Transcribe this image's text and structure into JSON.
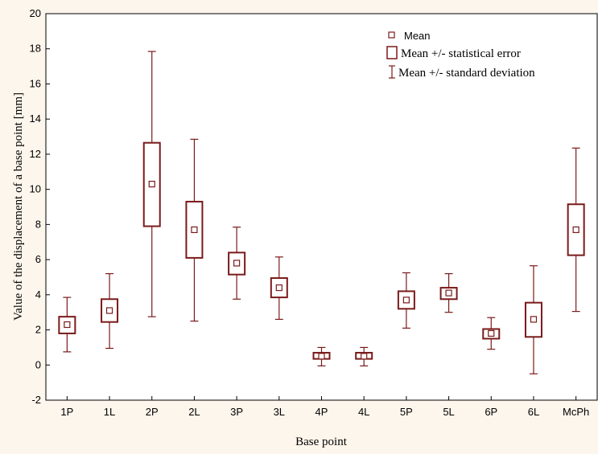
{
  "chart_data": {
    "type": "box",
    "xlabel": "Base point",
    "ylabel": "Value of the displacement of a base point  [mm]",
    "ylim": [
      -2,
      20
    ],
    "yticks": [
      -2,
      0,
      2,
      4,
      6,
      8,
      10,
      12,
      14,
      16,
      18,
      20
    ],
    "categories": [
      "1P",
      "1L",
      "2P",
      "2L",
      "3P",
      "3L",
      "4P",
      "4L",
      "5P",
      "5L",
      "6P",
      "6L",
      "McPh"
    ],
    "mean": [
      2.3,
      3.1,
      10.3,
      7.7,
      5.8,
      4.4,
      0.5,
      0.5,
      3.7,
      4.1,
      1.8,
      2.6,
      7.7
    ],
    "se_low": [
      1.8,
      2.45,
      7.9,
      6.1,
      5.15,
      3.85,
      0.35,
      0.35,
      3.2,
      3.75,
      1.5,
      1.6,
      6.25
    ],
    "se_high": [
      2.75,
      3.75,
      12.65,
      9.3,
      6.4,
      4.95,
      0.7,
      0.7,
      4.2,
      4.4,
      2.05,
      3.55,
      9.15
    ],
    "sd_low": [
      0.75,
      0.95,
      2.75,
      2.5,
      3.75,
      2.6,
      -0.05,
      -0.05,
      2.1,
      3.0,
      0.9,
      -0.5,
      3.05
    ],
    "sd_high": [
      3.85,
      5.2,
      17.85,
      12.85,
      7.85,
      6.15,
      1.0,
      1.0,
      5.25,
      5.2,
      2.7,
      5.65,
      12.35
    ],
    "legend": {
      "mean": "Mean",
      "se": "Mean +/- statistical error",
      "sd": "Mean +/- standard deviation",
      "position": "top-right"
    },
    "color": "#7a1a1a",
    "grid": false
  }
}
